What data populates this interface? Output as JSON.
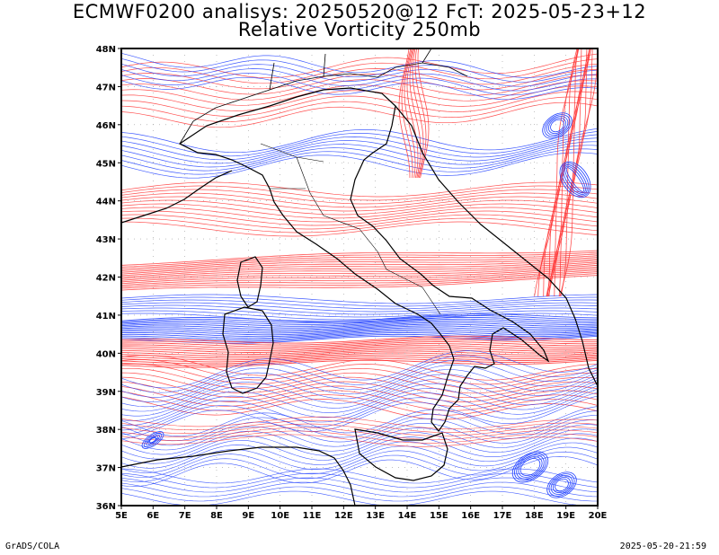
{
  "title": {
    "line1": "ECMWF0200 analisys: 20250520@12 FcT: 2025-05-23+12",
    "line2": "Relative Vorticity 250mb"
  },
  "map": {
    "lon_range": [
      5,
      20
    ],
    "lat_range": [
      36,
      48
    ],
    "lon_labels": [
      "5E",
      "6E",
      "7E",
      "8E",
      "9E",
      "10E",
      "11E",
      "12E",
      "13E",
      "14E",
      "15E",
      "16E",
      "17E",
      "18E",
      "19E",
      "20E"
    ],
    "lat_labels": [
      "36N",
      "37N",
      "38N",
      "39N",
      "40N",
      "41N",
      "42N",
      "43N",
      "44N",
      "45N",
      "46N",
      "47N",
      "48N"
    ],
    "positive_color": "#ff3030",
    "negative_color": "#2040ff",
    "grid": "dotted"
  },
  "footer": {
    "left": "GrADS/COLA",
    "right": "2025-05-20-21:59"
  }
}
